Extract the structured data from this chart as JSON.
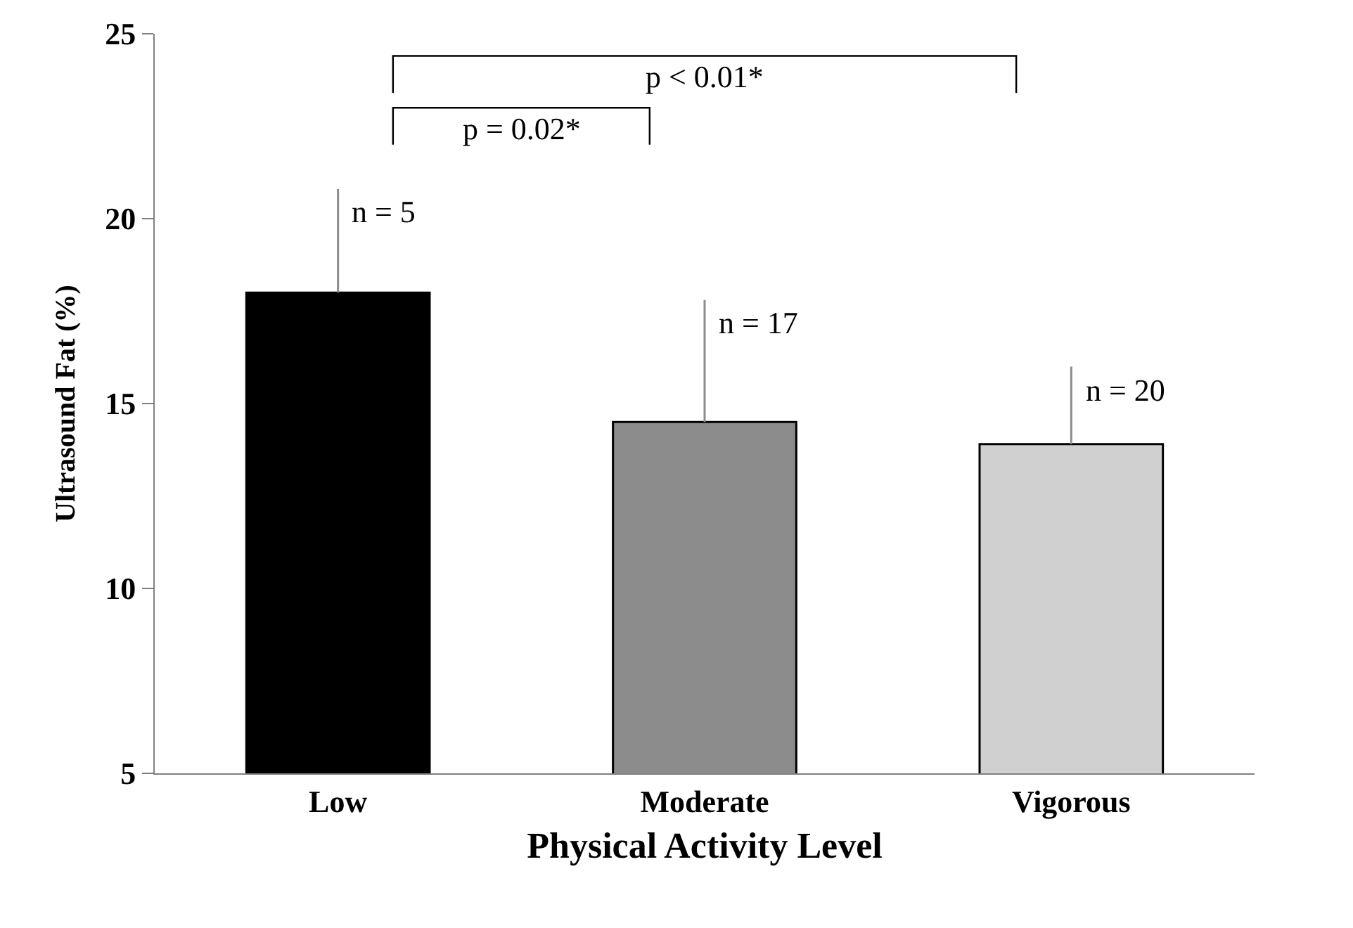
{
  "chart_data": {
    "type": "bar",
    "xlabel": "Physical Activity Level",
    "ylabel": "Ultrasound Fat (%)",
    "categories": [
      "Low",
      "Moderate",
      "Vigorous"
    ],
    "values": [
      18.0,
      14.5,
      13.9
    ],
    "errors": [
      [
        18.0,
        20.8
      ],
      [
        14.5,
        17.8
      ],
      [
        13.9,
        16.0
      ]
    ],
    "colors": [
      "#000000",
      "#8c8c8c",
      "#d0d0d0"
    ],
    "ylim": [
      5,
      25
    ],
    "yticks": [
      5,
      10,
      15,
      20,
      25
    ],
    "legend": false,
    "annotations": [
      {
        "text": "n = 5",
        "x": "Low",
        "y": 20.8
      },
      {
        "text": "n = 17",
        "x": "Moderate",
        "y": 17.8
      },
      {
        "text": "n = 20",
        "x": "Vigorous",
        "y": 16.0
      },
      "p = 0.02*",
      "p < 0.01*"
    ]
  }
}
